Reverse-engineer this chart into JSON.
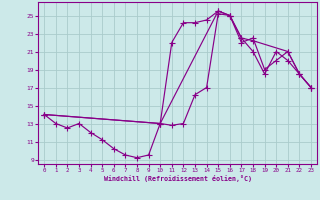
{
  "xlabel": "Windchill (Refroidissement éolien,°C)",
  "bg_color": "#cce9e9",
  "grid_color": "#aacccc",
  "line_color": "#880088",
  "xlim": [
    -0.5,
    23.5
  ],
  "ylim": [
    8.5,
    26.5
  ],
  "yticks": [
    9,
    11,
    13,
    15,
    17,
    19,
    21,
    23,
    25
  ],
  "xticks": [
    0,
    1,
    2,
    3,
    4,
    5,
    6,
    7,
    8,
    9,
    10,
    11,
    12,
    13,
    14,
    15,
    16,
    17,
    18,
    19,
    20,
    21,
    22,
    23
  ],
  "line1_x": [
    0,
    1,
    2,
    3,
    4,
    5,
    6,
    7,
    8,
    9,
    10,
    11,
    12,
    13,
    14,
    15,
    16,
    17,
    18,
    19,
    20,
    21,
    22,
    23
  ],
  "line1_y": [
    14,
    13,
    12.5,
    13,
    12,
    11.2,
    10.2,
    9.5,
    9.2,
    9.5,
    13,
    12.8,
    13,
    16.2,
    17,
    25.2,
    25,
    22.5,
    21,
    18.5,
    21,
    20,
    18.5,
    17
  ],
  "line2_x": [
    0,
    10,
    11,
    12,
    13,
    14,
    15,
    16,
    17,
    18,
    21,
    22,
    23
  ],
  "line2_y": [
    14,
    13,
    22,
    24.2,
    24.2,
    24.5,
    25.5,
    25,
    22.5,
    22.2,
    21,
    18.5,
    17
  ],
  "line3_x": [
    0,
    10,
    15,
    16,
    17,
    18,
    19,
    20,
    21,
    22,
    23
  ],
  "line3_y": [
    14,
    13,
    25.5,
    25,
    22,
    22.5,
    19,
    20,
    21,
    18.5,
    17
  ]
}
